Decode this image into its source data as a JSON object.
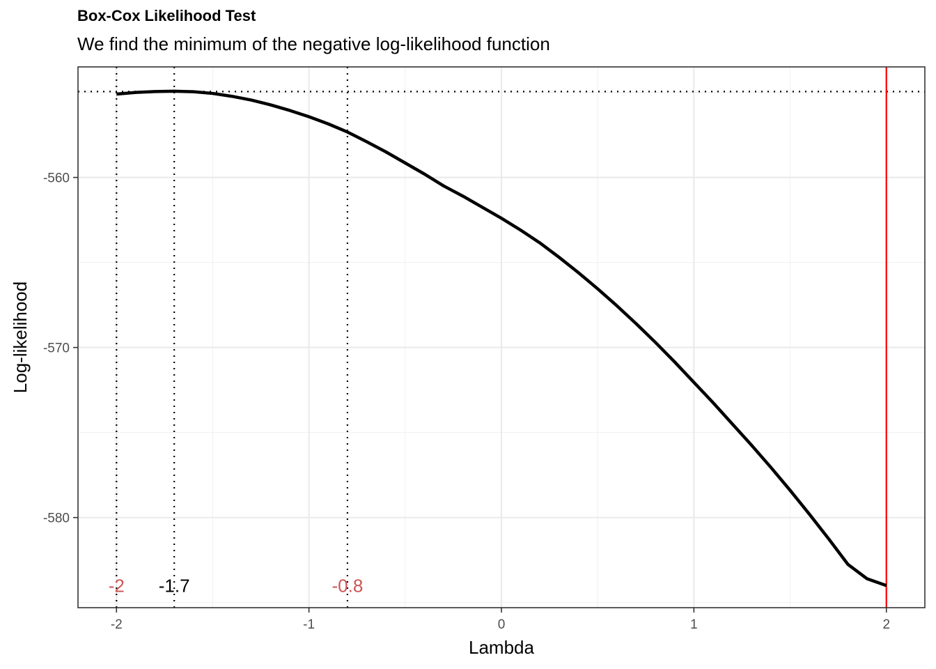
{
  "chart_data": {
    "type": "line",
    "title": "Box-Cox Likelihood Test",
    "subtitle": "We find the minimum of the negative log-likelihood function",
    "xlabel": "Lambda",
    "ylabel": "Log-likelihood",
    "xlim": [
      -2.2,
      2.2
    ],
    "ylim": [
      -585.3,
      -553.5
    ],
    "xticks": [
      -2,
      -1,
      0,
      1,
      2
    ],
    "xtick_labels": [
      "-2",
      "-1",
      "0",
      "1",
      "2"
    ],
    "yticks": [
      -560,
      -570,
      -580
    ],
    "ytick_labels": [
      "-560",
      "-570",
      "-580"
    ],
    "grid": true,
    "series": [
      {
        "color": "#000000",
        "x": [
          -2.0,
          -1.9,
          -1.8,
          -1.7,
          -1.6,
          -1.5,
          -1.4,
          -1.3,
          -1.2,
          -1.1,
          -1.0,
          -0.9,
          -0.8,
          -0.7,
          -0.6,
          -0.5,
          -0.4,
          -0.3,
          -0.2,
          -0.1,
          0.0,
          0.1,
          0.2,
          0.3,
          0.4,
          0.5,
          0.6,
          0.7,
          0.8,
          0.9,
          1.0,
          1.1,
          1.2,
          1.3,
          1.4,
          1.5,
          1.6,
          1.7,
          1.8,
          1.9,
          2.0
        ],
        "y": [
          -555.1,
          -555.0,
          -554.95,
          -554.93,
          -554.96,
          -555.06,
          -555.23,
          -555.45,
          -555.73,
          -556.06,
          -556.43,
          -556.85,
          -557.33,
          -557.9,
          -558.5,
          -559.15,
          -559.8,
          -560.5,
          -561.1,
          -561.75,
          -562.4,
          -563.1,
          -563.85,
          -564.7,
          -565.6,
          -566.55,
          -567.55,
          -568.6,
          -569.7,
          -570.85,
          -572.05,
          -573.25,
          -574.5,
          -575.75,
          -577.05,
          -578.4,
          -579.8,
          -581.25,
          -582.75,
          -583.6,
          -584.0
        ]
      }
    ],
    "reference_lines": {
      "horizontal_dotted_y": -554.95,
      "vertical_dotted_x": [
        -2,
        -1.7,
        -0.8
      ],
      "vertical_solid_x": 2,
      "vertical_solid_color": "#ff0000"
    },
    "annotations": [
      {
        "text": "-2",
        "x": -2,
        "color": "#cd5555"
      },
      {
        "text": "-1.7",
        "x": -1.7,
        "color": "#000000"
      },
      {
        "text": "-0.8",
        "x": -0.8,
        "color": "#cd5555"
      }
    ],
    "annotation_y": -584.0
  }
}
